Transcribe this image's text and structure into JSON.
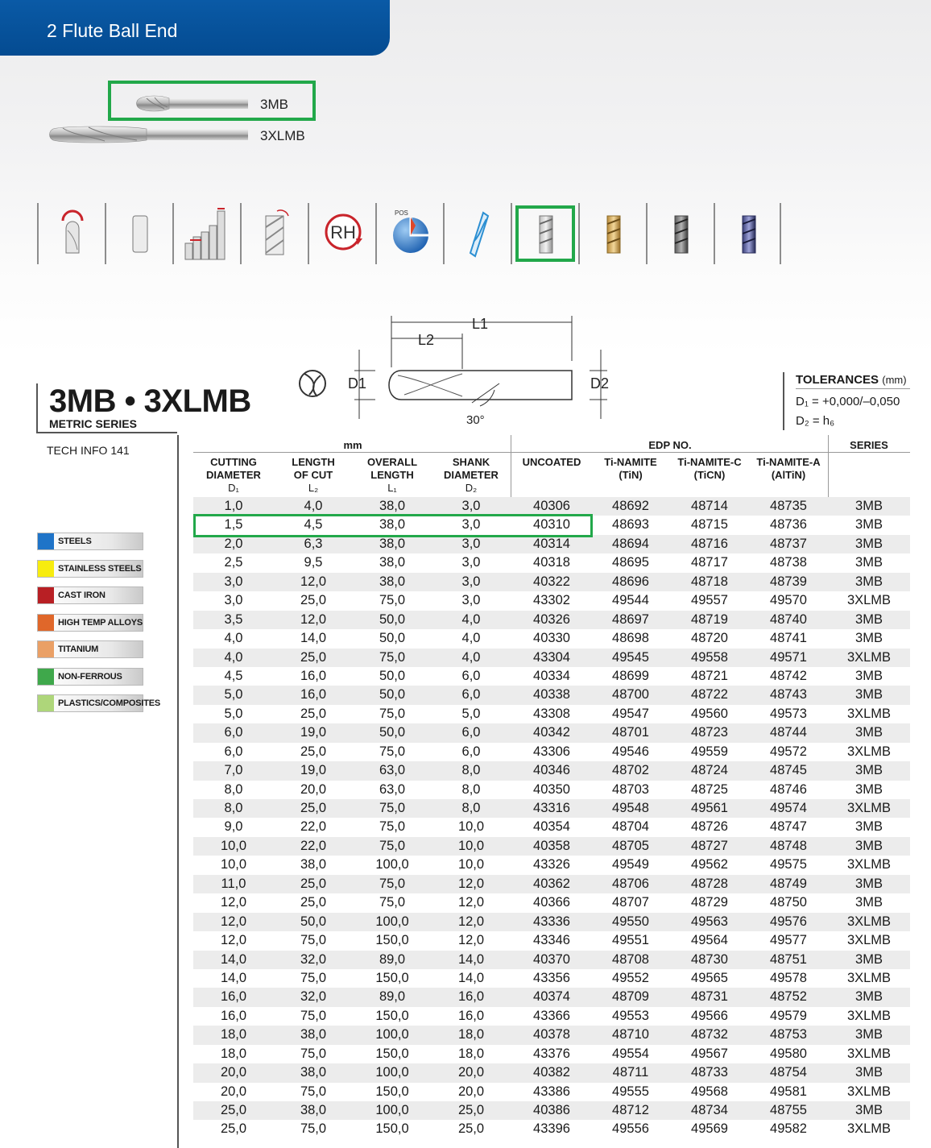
{
  "header": {
    "title": "2 Flute Ball End"
  },
  "tools": [
    {
      "label": "3MB",
      "highlighted": true
    },
    {
      "label": "3XLMB",
      "highlighted": false
    }
  ],
  "icons": [
    {
      "name": "ball-nose-end-icon"
    },
    {
      "name": "plain-shank-icon"
    },
    {
      "name": "tolerance-bars-icon"
    },
    {
      "name": "helix-angle-icon"
    },
    {
      "name": "right-hand-cut-icon",
      "text": "RH"
    },
    {
      "name": "positive-rake-icon",
      "text": "POS"
    },
    {
      "name": "flute-profile-icon"
    },
    {
      "name": "uncoated-tool-icon",
      "highlighted": true
    },
    {
      "name": "tin-coated-tool-icon"
    },
    {
      "name": "ticn-coated-tool-icon"
    },
    {
      "name": "altin-coated-tool-icon"
    }
  ],
  "diagram": {
    "l1": "L1",
    "l2": "L2",
    "d1": "D1",
    "d2": "D2",
    "angle": "30°"
  },
  "product": {
    "title": "3MB • 3XLMB",
    "series": "METRIC SERIES",
    "tech_info": "TECH INFO 141"
  },
  "tolerances": {
    "title": "TOLERANCES",
    "unit": "(mm)",
    "d1": "D₁  =  +0,000/–0,050",
    "d2": "D₂  =  h₆"
  },
  "materials": [
    {
      "label": "STEELS",
      "color": "#1f74c8"
    },
    {
      "label": "STAINLESS STEELS",
      "color": "#f7ec0f"
    },
    {
      "label": "CAST IRON",
      "color": "#b81f24"
    },
    {
      "label": "HIGH TEMP ALLOYS",
      "color": "#e0672a"
    },
    {
      "label": "TITANIUM",
      "color": "#eaa066"
    },
    {
      "label": "NON-FERROUS",
      "color": "#3fa84b"
    },
    {
      "label": "PLASTICS/COMPOSITES",
      "color": "#aed67a"
    }
  ],
  "table": {
    "group_mm": "mm",
    "group_edp": "EDP NO.",
    "group_series": "SERIES",
    "headers": {
      "cutting": "CUTTING\nDIAMETER",
      "cutting_sym": "D₁",
      "length": "LENGTH\nOF CUT",
      "length_sym": "L₂",
      "overall": "OVERALL\nLENGTH",
      "overall_sym": "L₁",
      "shank": "SHANK\nDIAMETER",
      "shank_sym": "D₂",
      "uncoated": "UNCOATED",
      "tin": "Ti-NAMITE\n(TiN)",
      "ticn": "Ti-NAMITE-C\n(TiCN)",
      "altin": "Ti-NAMITE-A\n(AlTiN)"
    },
    "rows": [
      [
        "1,0",
        "4,0",
        "38,0",
        "3,0",
        "40306",
        "48692",
        "48714",
        "48735",
        "3MB"
      ],
      [
        "1,5",
        "4,5",
        "38,0",
        "3,0",
        "40310",
        "48693",
        "48715",
        "48736",
        "3MB"
      ],
      [
        "2,0",
        "6,3",
        "38,0",
        "3,0",
        "40314",
        "48694",
        "48716",
        "48737",
        "3MB"
      ],
      [
        "2,5",
        "9,5",
        "38,0",
        "3,0",
        "40318",
        "48695",
        "48717",
        "48738",
        "3MB"
      ],
      [
        "3,0",
        "12,0",
        "38,0",
        "3,0",
        "40322",
        "48696",
        "48718",
        "48739",
        "3MB"
      ],
      [
        "3,0",
        "25,0",
        "75,0",
        "3,0",
        "43302",
        "49544",
        "49557",
        "49570",
        "3XLMB"
      ],
      [
        "3,5",
        "12,0",
        "50,0",
        "4,0",
        "40326",
        "48697",
        "48719",
        "48740",
        "3MB"
      ],
      [
        "4,0",
        "14,0",
        "50,0",
        "4,0",
        "40330",
        "48698",
        "48720",
        "48741",
        "3MB"
      ],
      [
        "4,0",
        "25,0",
        "75,0",
        "4,0",
        "43304",
        "49545",
        "49558",
        "49571",
        "3XLMB"
      ],
      [
        "4,5",
        "16,0",
        "50,0",
        "6,0",
        "40334",
        "48699",
        "48721",
        "48742",
        "3MB"
      ],
      [
        "5,0",
        "16,0",
        "50,0",
        "6,0",
        "40338",
        "48700",
        "48722",
        "48743",
        "3MB"
      ],
      [
        "5,0",
        "25,0",
        "75,0",
        "5,0",
        "43308",
        "49547",
        "49560",
        "49573",
        "3XLMB"
      ],
      [
        "6,0",
        "19,0",
        "50,0",
        "6,0",
        "40342",
        "48701",
        "48723",
        "48744",
        "3MB"
      ],
      [
        "6,0",
        "25,0",
        "75,0",
        "6,0",
        "43306",
        "49546",
        "49559",
        "49572",
        "3XLMB"
      ],
      [
        "7,0",
        "19,0",
        "63,0",
        "8,0",
        "40346",
        "48702",
        "48724",
        "48745",
        "3MB"
      ],
      [
        "8,0",
        "20,0",
        "63,0",
        "8,0",
        "40350",
        "48703",
        "48725",
        "48746",
        "3MB"
      ],
      [
        "8,0",
        "25,0",
        "75,0",
        "8,0",
        "43316",
        "49548",
        "49561",
        "49574",
        "3XLMB"
      ],
      [
        "9,0",
        "22,0",
        "75,0",
        "10,0",
        "40354",
        "48704",
        "48726",
        "48747",
        "3MB"
      ],
      [
        "10,0",
        "22,0",
        "75,0",
        "10,0",
        "40358",
        "48705",
        "48727",
        "48748",
        "3MB"
      ],
      [
        "10,0",
        "38,0",
        "100,0",
        "10,0",
        "43326",
        "49549",
        "49562",
        "49575",
        "3XLMB"
      ],
      [
        "11,0",
        "25,0",
        "75,0",
        "12,0",
        "40362",
        "48706",
        "48728",
        "48749",
        "3MB"
      ],
      [
        "12,0",
        "25,0",
        "75,0",
        "12,0",
        "40366",
        "48707",
        "48729",
        "48750",
        "3MB"
      ],
      [
        "12,0",
        "50,0",
        "100,0",
        "12,0",
        "43336",
        "49550",
        "49563",
        "49576",
        "3XLMB"
      ],
      [
        "12,0",
        "75,0",
        "150,0",
        "12,0",
        "43346",
        "49551",
        "49564",
        "49577",
        "3XLMB"
      ],
      [
        "14,0",
        "32,0",
        "89,0",
        "14,0",
        "40370",
        "48708",
        "48730",
        "48751",
        "3MB"
      ],
      [
        "14,0",
        "75,0",
        "150,0",
        "14,0",
        "43356",
        "49552",
        "49565",
        "49578",
        "3XLMB"
      ],
      [
        "16,0",
        "32,0",
        "89,0",
        "16,0",
        "40374",
        "48709",
        "48731",
        "48752",
        "3MB"
      ],
      [
        "16,0",
        "75,0",
        "150,0",
        "16,0",
        "43366",
        "49553",
        "49566",
        "49579",
        "3XLMB"
      ],
      [
        "18,0",
        "38,0",
        "100,0",
        "18,0",
        "40378",
        "48710",
        "48732",
        "48753",
        "3MB"
      ],
      [
        "18,0",
        "75,0",
        "150,0",
        "18,0",
        "43376",
        "49554",
        "49567",
        "49580",
        "3XLMB"
      ],
      [
        "20,0",
        "38,0",
        "100,0",
        "20,0",
        "40382",
        "48711",
        "48733",
        "48754",
        "3MB"
      ],
      [
        "20,0",
        "75,0",
        "150,0",
        "20,0",
        "43386",
        "49555",
        "49568",
        "49581",
        "3XLMB"
      ],
      [
        "25,0",
        "38,0",
        "100,0",
        "25,0",
        "40386",
        "48712",
        "48734",
        "48755",
        "3MB"
      ],
      [
        "25,0",
        "75,0",
        "150,0",
        "25,0",
        "43396",
        "49556",
        "49569",
        "49582",
        "3XLMB"
      ]
    ],
    "highlighted_row": 1
  }
}
